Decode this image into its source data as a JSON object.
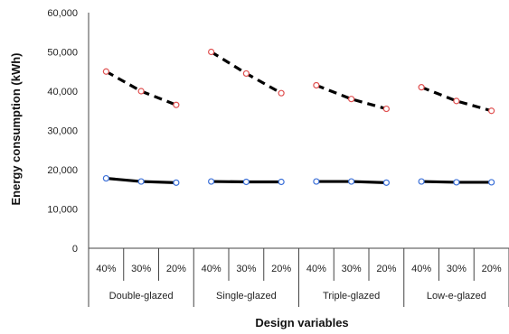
{
  "chart_data": {
    "type": "line",
    "xlabel": "Design variables",
    "ylabel": "Energy consumption  (kWh)",
    "ylim": [
      0,
      60000
    ],
    "yticks": [
      "60,000",
      "50,000",
      "40,000",
      "30,000",
      "20,000",
      "10,000",
      "0"
    ],
    "grid": false,
    "groups": [
      {
        "name": "Double-glazed",
        "categories": [
          "40%",
          "30%",
          "20%"
        ]
      },
      {
        "name": "Single-glazed",
        "categories": [
          "40%",
          "30%",
          "20%"
        ]
      },
      {
        "name": "Triple-glazed",
        "categories": [
          "40%",
          "30%",
          "20%"
        ]
      },
      {
        "name": "Low-e-glazed",
        "categories": [
          "40%",
          "30%",
          "20%"
        ]
      }
    ],
    "series": [
      {
        "style": "dashed",
        "marker_color": "#e05050",
        "values": [
          [
            45000,
            40000,
            36500
          ],
          [
            50000,
            44500,
            39500
          ],
          [
            41500,
            38000,
            35500
          ],
          [
            41000,
            37500,
            35000
          ]
        ]
      },
      {
        "style": "solid",
        "marker_color": "#3a6fd8",
        "values": [
          [
            17800,
            17000,
            16700
          ],
          [
            17000,
            16900,
            16900
          ],
          [
            17000,
            17000,
            16700
          ],
          [
            17000,
            16800,
            16800
          ]
        ]
      }
    ]
  }
}
